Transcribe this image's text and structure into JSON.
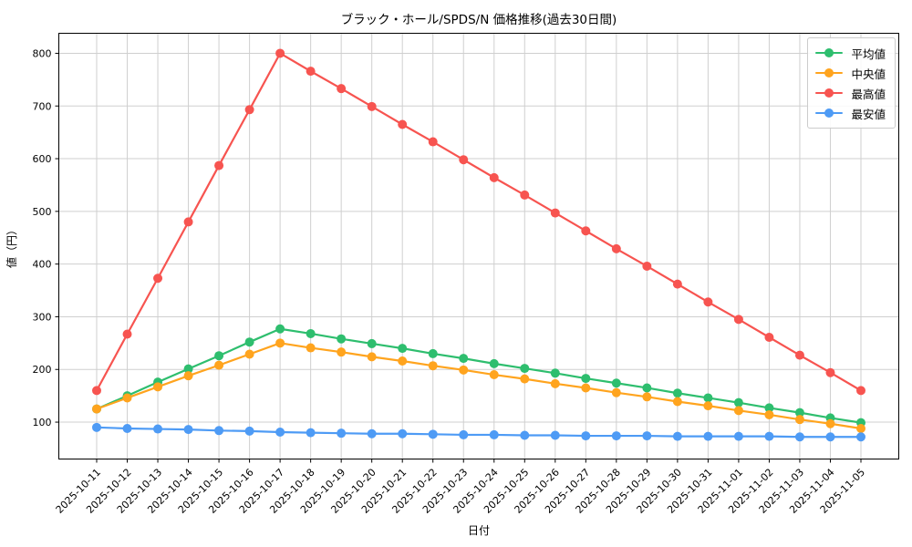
{
  "chart_data": {
    "type": "line",
    "title": "ブラック・ホール/SPDS/N 価格推移(過去30日間)",
    "xlabel": "日付",
    "ylabel": "値（円）",
    "x": [
      "2025-10-11",
      "2025-10-12",
      "2025-10-13",
      "2025-10-14",
      "2025-10-15",
      "2025-10-16",
      "2025-10-17",
      "2025-10-18",
      "2025-10-19",
      "2025-10-20",
      "2025-10-21",
      "2025-10-22",
      "2025-10-23",
      "2025-10-24",
      "2025-10-25",
      "2025-10-26",
      "2025-10-27",
      "2025-10-28",
      "2025-10-29",
      "2025-10-30",
      "2025-10-31",
      "2025-11-01",
      "2025-11-02",
      "2025-11-03",
      "2025-11-04",
      "2025-11-05"
    ],
    "series": [
      {
        "name": "平均値",
        "color": "#2ebe6e",
        "values": [
          125,
          150,
          176,
          201,
          226,
          252,
          277,
          268,
          258,
          249,
          240,
          230,
          221,
          211,
          202,
          193,
          183,
          174,
          165,
          155,
          146,
          137,
          127,
          118,
          108,
          99
        ]
      },
      {
        "name": "中央値",
        "color": "#ffa41e",
        "values": [
          125,
          146,
          167,
          188,
          208,
          229,
          250,
          241,
          233,
          224,
          216,
          207,
          199,
          190,
          182,
          173,
          165,
          156,
          148,
          139,
          131,
          122,
          114,
          105,
          97,
          88
        ]
      },
      {
        "name": "最高値",
        "color": "#f75450",
        "values": [
          160,
          267,
          373,
          480,
          587,
          693,
          800,
          766,
          733,
          699,
          665,
          632,
          598,
          564,
          531,
          497,
          463,
          429,
          396,
          362,
          328,
          295,
          261,
          227,
          194,
          160
        ]
      },
      {
        "name": "最安値",
        "color": "#4e9bf5",
        "values": [
          90,
          88,
          87,
          86,
          84,
          83,
          81,
          80,
          79,
          78,
          78,
          77,
          76,
          76,
          75,
          75,
          74,
          74,
          74,
          73,
          73,
          73,
          73,
          72,
          72,
          72
        ]
      }
    ],
    "yticks": [
      100,
      200,
      300,
      400,
      500,
      600,
      700,
      800
    ],
    "ylim": [
      30,
      838
    ],
    "grid": true,
    "grid_color": "#cfcfcf",
    "spine_color": "#000000",
    "legend_position": "upper right"
  }
}
